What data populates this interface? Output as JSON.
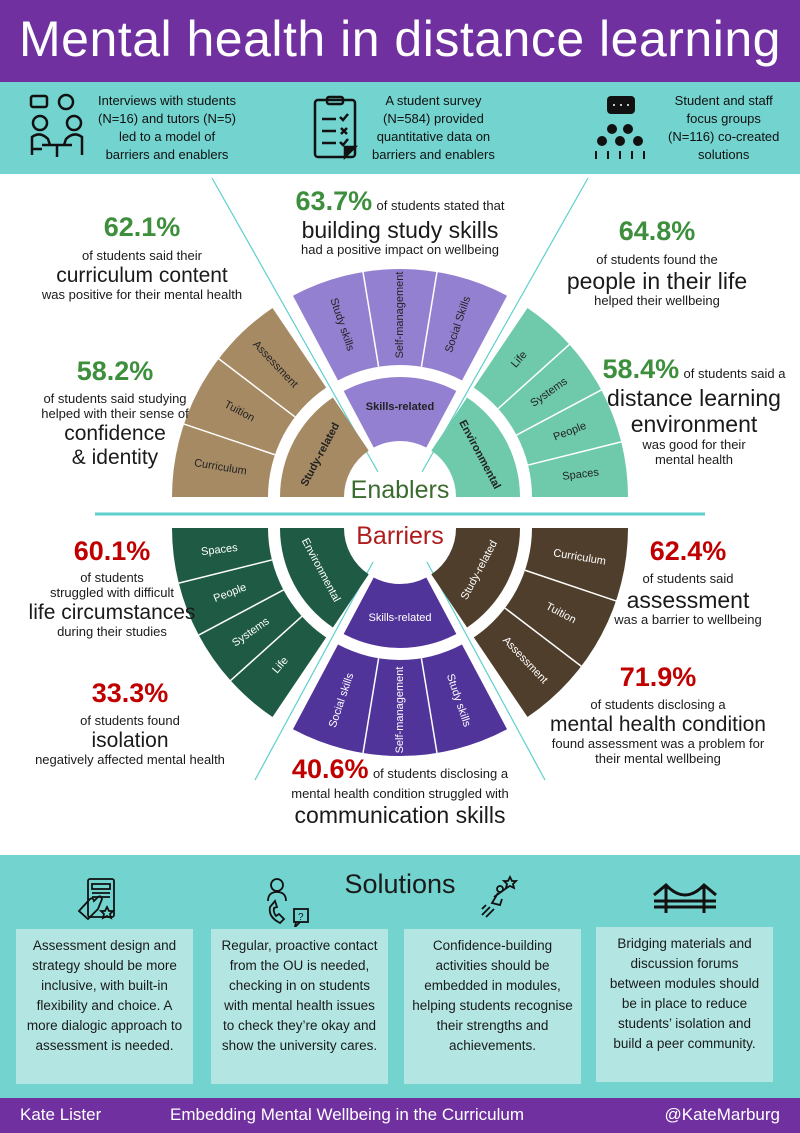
{
  "title": "Mental health in distance learning",
  "methods": [
    {
      "icon": "interview-icon",
      "lines": [
        "Interviews with students",
        "(N=16) and tutors (N=5)",
        "led to a model of",
        "barriers and enablers"
      ]
    },
    {
      "icon": "survey-clipboard-icon",
      "lines": [
        "A student survey",
        "(N=584) provided",
        "quantitative data on",
        "barriers and enablers"
      ]
    },
    {
      "icon": "focus-group-icon",
      "lines": [
        "Student and staff",
        "focus groups",
        "(N=116) co-created",
        "solutions"
      ]
    }
  ],
  "enablers": {
    "label": "Enablers",
    "label_color": "#3b6b2f",
    "groups": [
      {
        "name": "Study-related",
        "color": "#a68a64",
        "items": [
          "Curriculum",
          "Tuition",
          "Assessment"
        ]
      },
      {
        "name": "Skills-related",
        "color": "#9480d0",
        "items": [
          "Study skills",
          "Self-management",
          "Social Skills"
        ]
      },
      {
        "name": "Environmental",
        "color": "#6ecaab",
        "items": [
          "Life",
          "Systems",
          "People",
          "Spaces"
        ]
      }
    ],
    "stats": [
      {
        "pct": "62.1%",
        "lines": [
          "of students said their",
          "curriculum content",
          "was positive for their mental health"
        ]
      },
      {
        "pct": "58.2%",
        "lines": [
          "of students said studying",
          "helped with their sense of",
          "confidence",
          "& identity"
        ]
      },
      {
        "pct": "63.7%",
        "lines": [
          "of students stated that",
          "building study skills",
          "had a positive impact on wellbeing"
        ]
      },
      {
        "pct": "64.8%",
        "lines": [
          "of students found the",
          "people in their life",
          "helped their wellbeing"
        ]
      },
      {
        "pct": "58.4%",
        "lines": [
          "of students said a",
          "distance learning",
          "environment",
          "was good for their",
          "mental health"
        ]
      }
    ]
  },
  "barriers": {
    "label": "Barriers",
    "label_color": "#b01c1c",
    "groups": [
      {
        "name": "Environmental",
        "color": "#1f5a45",
        "items": [
          "Spaces",
          "People",
          "Systems",
          "Life"
        ]
      },
      {
        "name": "Skills-related",
        "color": "#50349a",
        "items": [
          "Social skills",
          "Self-management",
          "Study skills"
        ]
      },
      {
        "name": "Study-related",
        "color": "#4f3e2b",
        "items": [
          "Assessment",
          "Tuition",
          "Curriculum"
        ]
      }
    ],
    "stats": [
      {
        "pct": "60.1%",
        "lines": [
          "of students",
          "struggled with difficult",
          "life circumstances",
          "during their studies"
        ]
      },
      {
        "pct": "33.3%",
        "lines": [
          "of students found",
          "isolation",
          "negatively affected mental health"
        ]
      },
      {
        "pct": "62.4%",
        "lines": [
          "of students said",
          "assessment",
          "was a barrier to wellbeing"
        ]
      },
      {
        "pct": "71.9%",
        "lines": [
          "of students disclosing a",
          "mental health condition",
          "found assessment was a problem for",
          "their mental wellbeing"
        ]
      },
      {
        "pct": "40.6%",
        "lines": [
          "of students disclosing a",
          "mental health condition struggled with",
          "communication skills"
        ]
      }
    ]
  },
  "colors": {
    "purple": "#7030a0",
    "teal": "#72d3cf",
    "box": "#b3e6e3",
    "green_stat": "#3d8f3d",
    "red_stat": "#c00000"
  },
  "solutions": {
    "title": "Solutions",
    "items": [
      {
        "icon": "tablet-hand-star-icon",
        "text": "Assessment design and strategy should be more inclusive, with built-in flexibility and choice. A more dialogic approach to assessment is needed."
      },
      {
        "icon": "phone-contact-icon",
        "text": "Regular, proactive contact from the OU is needed, checking in on students with mental health issues to check they’re okay and show the university cares."
      },
      {
        "icon": "rocket-person-star-icon",
        "text": "Confidence-building activities should be embedded in modules, helping students recognise their strengths and achievements."
      },
      {
        "icon": "bridge-icon",
        "text": "Bridging materials and discussion forums between modules should be in place to reduce students’ isolation and build a peer community."
      }
    ]
  },
  "footer": {
    "author": "Kate Lister",
    "project": "Embedding Mental Wellbeing in the Curriculum",
    "handle": "@KateMarburg"
  }
}
